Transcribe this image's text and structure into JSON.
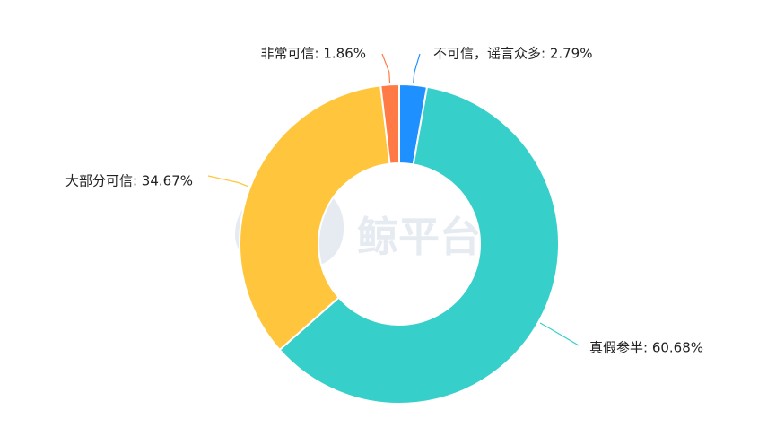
{
  "watermark": {
    "text": "鲸平台",
    "icon": "whale-logo-icon",
    "color": "#e6ebf2"
  },
  "chart_data": {
    "type": "pie",
    "variant": "donut",
    "title": "",
    "start_angle_deg": 90,
    "direction": "clockwise",
    "series": [
      {
        "name": "不可信，谣言众多",
        "label": "不可信，谣言众多: 2.79%",
        "value": 2.79,
        "color": "#1e90ff"
      },
      {
        "name": "真假参半",
        "label": "真假参半: 60.68%",
        "value": 60.68,
        "color": "#36cfc9"
      },
      {
        "name": "大部分可信",
        "label": "大部分可信: 34.67%",
        "value": 34.67,
        "color": "#ffc53d"
      },
      {
        "name": "非常可信",
        "label": "非常可信: 1.86%",
        "value": 1.86,
        "color": "#ff7a45"
      }
    ]
  }
}
